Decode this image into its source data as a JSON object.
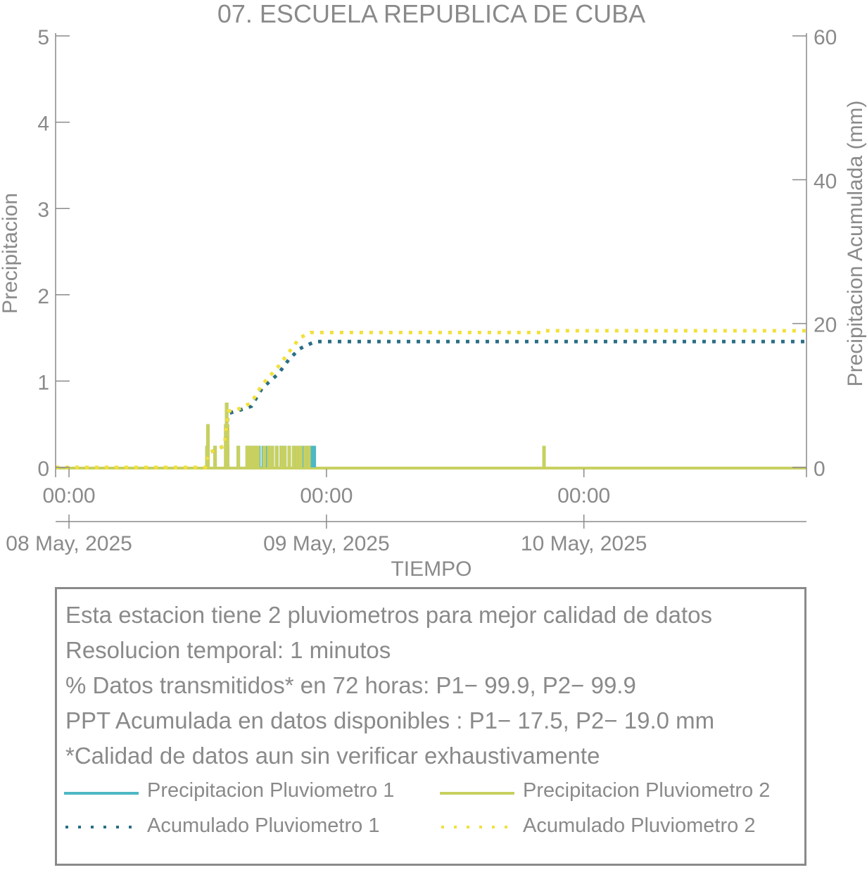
{
  "chart_data": {
    "type": "bar+line",
    "title": "07. ESCUELA REPUBLICA DE CUBA",
    "xlabel": "TIEMPO",
    "ylabel_left": "Precipitacion",
    "ylabel_right": "Precipitacion Acumulada (mm)",
    "ylim_left": [
      0,
      5
    ],
    "ylim_right": [
      0,
      60
    ],
    "yticks_left": [
      "0",
      "1",
      "2",
      "3",
      "4",
      "5"
    ],
    "yticks_right": [
      "0",
      "20",
      "40",
      "60"
    ],
    "x_start": "2025-05-07 22:45",
    "x_end": "2025-05-10 20:45",
    "xticks": [
      {
        "time": "2025-05-08 00:00",
        "label1": "00:00",
        "label2": "08 May, 2025"
      },
      {
        "time": "2025-05-09 00:00",
        "label1": "00:00",
        "label2": "09 May, 2025"
      },
      {
        "time": "2025-05-10 00:00",
        "label1": "00:00",
        "label2": "10 May, 2025"
      }
    ],
    "grid": false,
    "series": [
      {
        "name": "Precipitacion Pluviometro 1",
        "kind": "bar",
        "color": "#4DB8C4",
        "points": [
          [
            "2025-05-08 12:50",
            0.25
          ],
          [
            "2025-05-08 12:55",
            0.5
          ],
          [
            "2025-05-08 13:35",
            0.25
          ],
          [
            "2025-05-08 14:35",
            0.5
          ],
          [
            "2025-05-08 14:40",
            0.75
          ],
          [
            "2025-05-08 14:45",
            0.25
          ],
          [
            "2025-05-08 15:45",
            0.25
          ],
          [
            "2025-05-08 16:35",
            0.25
          ],
          [
            "2025-05-08 16:50",
            0.25
          ],
          [
            "2025-05-08 17:05",
            0.25
          ],
          [
            "2025-05-08 17:20",
            0.25
          ],
          [
            "2025-05-08 17:40",
            0.25
          ],
          [
            "2025-05-08 18:05",
            0.25
          ],
          [
            "2025-05-08 18:30",
            0.25
          ],
          [
            "2025-05-08 18:55",
            0.25
          ],
          [
            "2025-05-08 19:20",
            0.25
          ],
          [
            "2025-05-08 19:45",
            0.25
          ],
          [
            "2025-05-08 20:05",
            0.25
          ],
          [
            "2025-05-08 20:30",
            0.25
          ],
          [
            "2025-05-08 20:55",
            0.25
          ],
          [
            "2025-05-08 21:15",
            0.25
          ],
          [
            "2025-05-08 21:40",
            0.25
          ],
          [
            "2025-05-08 22:05",
            0.25
          ],
          [
            "2025-05-08 22:25",
            0.25
          ],
          [
            "2025-05-08 22:40",
            0.25
          ],
          [
            "2025-05-08 22:50",
            0.25
          ]
        ]
      },
      {
        "name": "Precipitacion Pluviometro 2",
        "kind": "bar",
        "color": "#C8D060",
        "points": [
          [
            "2025-05-08 12:50",
            0.25
          ],
          [
            "2025-05-08 12:55",
            0.5
          ],
          [
            "2025-05-08 13:35",
            0.25
          ],
          [
            "2025-05-08 14:35",
            0.5
          ],
          [
            "2025-05-08 14:40",
            0.75
          ],
          [
            "2025-05-08 14:45",
            0.5
          ],
          [
            "2025-05-08 15:45",
            0.25
          ],
          [
            "2025-05-08 16:35",
            0.25
          ],
          [
            "2025-05-08 16:50",
            0.25
          ],
          [
            "2025-05-08 17:05",
            0.25
          ],
          [
            "2025-05-08 17:20",
            0.25
          ],
          [
            "2025-05-08 17:35",
            0.25
          ],
          [
            "2025-05-08 18:10",
            0.25
          ],
          [
            "2025-05-08 18:35",
            0.25
          ],
          [
            "2025-05-08 18:55",
            0.25
          ],
          [
            "2025-05-08 19:20",
            0.25
          ],
          [
            "2025-05-08 19:45",
            0.25
          ],
          [
            "2025-05-08 20:05",
            0.25
          ],
          [
            "2025-05-08 20:30",
            0.25
          ],
          [
            "2025-05-08 20:55",
            0.25
          ],
          [
            "2025-05-08 21:15",
            0.25
          ],
          [
            "2025-05-08 21:35",
            0.25
          ],
          [
            "2025-05-08 22:00",
            0.25
          ],
          [
            "2025-05-08 22:20",
            0.25
          ],
          [
            "2025-05-09 20:15",
            0.25
          ]
        ]
      },
      {
        "name": "Acumulado Pluviometro 1",
        "kind": "line",
        "axis": "right",
        "color": "#2A6E86",
        "points": [
          [
            "2025-05-07 22:45",
            0.0
          ],
          [
            "2025-05-08 12:45",
            0.0
          ],
          [
            "2025-05-08 13:00",
            2.0
          ],
          [
            "2025-05-08 14:30",
            3.0
          ],
          [
            "2025-05-08 14:50",
            7.5
          ],
          [
            "2025-05-08 16:00",
            8.0
          ],
          [
            "2025-05-08 17:00",
            8.5
          ],
          [
            "2025-05-08 18:00",
            11.0
          ],
          [
            "2025-05-08 19:30",
            13.0
          ],
          [
            "2025-05-08 20:30",
            15.0
          ],
          [
            "2025-05-08 21:30",
            16.5
          ],
          [
            "2025-05-08 22:30",
            17.2
          ],
          [
            "2025-05-08 23:00",
            17.5
          ],
          [
            "2025-05-10 20:45",
            17.5
          ]
        ]
      },
      {
        "name": "Acumulado Pluviometro 2",
        "kind": "line",
        "axis": "right",
        "color": "#F2E03C",
        "points": [
          [
            "2025-05-07 22:45",
            0.0
          ],
          [
            "2025-05-08 12:45",
            0.0
          ],
          [
            "2025-05-08 13:00",
            2.0
          ],
          [
            "2025-05-08 14:30",
            3.0
          ],
          [
            "2025-05-08 14:50",
            7.8
          ],
          [
            "2025-05-08 16:00",
            8.2
          ],
          [
            "2025-05-08 17:00",
            9.0
          ],
          [
            "2025-05-08 18:00",
            11.5
          ],
          [
            "2025-05-08 19:30",
            14.0
          ],
          [
            "2025-05-08 20:30",
            16.0
          ],
          [
            "2025-05-08 21:30",
            18.0
          ],
          [
            "2025-05-08 22:30",
            18.75
          ],
          [
            "2025-05-09 20:10",
            18.75
          ],
          [
            "2025-05-09 20:20",
            19.0
          ],
          [
            "2025-05-10 20:45",
            19.0
          ]
        ]
      }
    ]
  },
  "info": {
    "lines": [
      "Esta estacion tiene 2 pluviometros para mejor calidad de datos",
      "Resolucion temporal: 1 minutos",
      "% Datos transmitidos* en 72 horas: P1− 99.9, P2− 99.9",
      "PPT Acumulada en datos disponibles : P1− 17.5, P2− 19.0 mm",
      "*Calidad de datos aun sin verificar exhaustivamente"
    ],
    "legend": [
      {
        "label": "Precipitacion Pluviometro 1",
        "color": "#4DB8C4",
        "style": "solid"
      },
      {
        "label": "Precipitacion Pluviometro 2",
        "color": "#C8D060",
        "style": "solid"
      },
      {
        "label": "Acumulado Pluviometro 1",
        "color": "#2A6E86",
        "style": "dotted"
      },
      {
        "label": "Acumulado Pluviometro 2",
        "color": "#F2E03C",
        "style": "dotted"
      }
    ]
  }
}
